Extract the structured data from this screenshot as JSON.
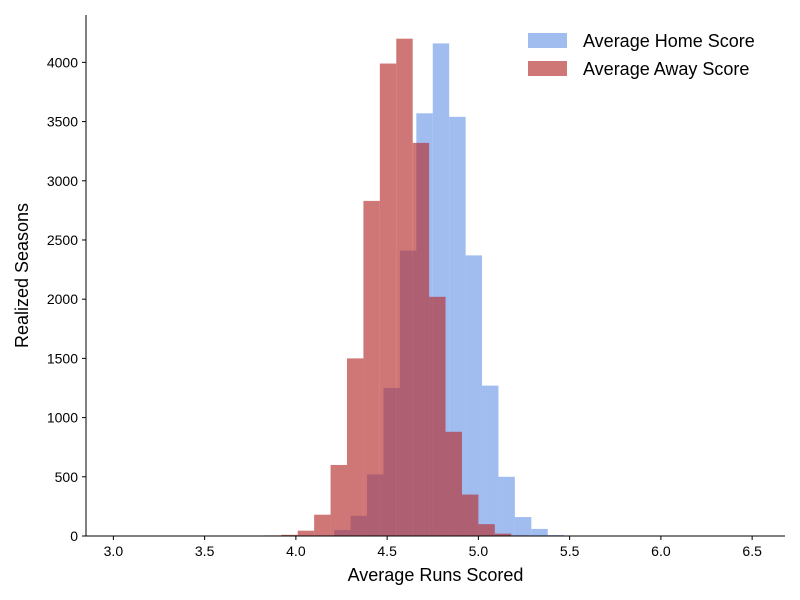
{
  "chart_data": {
    "type": "histogram",
    "xlabel": "Average Runs Scored",
    "ylabel": "Realized Seasons",
    "xlim": [
      2.85,
      6.68
    ],
    "ylim": [
      0,
      4400
    ],
    "xticks": [
      "3.0",
      "3.5",
      "4.0",
      "4.5",
      "5.0",
      "5.5",
      "6.0",
      "6.5"
    ],
    "yticks": [
      "0",
      "500",
      "1000",
      "1500",
      "2000",
      "2500",
      "3000",
      "3500",
      "4000"
    ],
    "grid": false,
    "legend_position": "top-right",
    "series": [
      {
        "name": "Average Home Score",
        "color": "#6e9ae8",
        "opacity": 0.65,
        "bins": [
          {
            "x0": 4.12,
            "x1": 4.21,
            "y": 5
          },
          {
            "x0": 4.21,
            "x1": 4.3,
            "y": 50
          },
          {
            "x0": 4.3,
            "x1": 4.39,
            "y": 170
          },
          {
            "x0": 4.39,
            "x1": 4.48,
            "y": 520
          },
          {
            "x0": 4.48,
            "x1": 4.57,
            "y": 1250
          },
          {
            "x0": 4.57,
            "x1": 4.66,
            "y": 2410
          },
          {
            "x0": 4.66,
            "x1": 4.75,
            "y": 3570
          },
          {
            "x0": 4.75,
            "x1": 4.84,
            "y": 4160
          },
          {
            "x0": 4.84,
            "x1": 4.93,
            "y": 3540
          },
          {
            "x0": 4.93,
            "x1": 5.02,
            "y": 2370
          },
          {
            "x0": 5.02,
            "x1": 5.11,
            "y": 1270
          },
          {
            "x0": 5.11,
            "x1": 5.2,
            "y": 500
          },
          {
            "x0": 5.2,
            "x1": 5.29,
            "y": 160
          },
          {
            "x0": 5.29,
            "x1": 5.38,
            "y": 60
          },
          {
            "x0": 5.38,
            "x1": 5.47,
            "y": 8
          }
        ]
      },
      {
        "name": "Average Away Score",
        "color": "#b52d2d",
        "opacity": 0.65,
        "bins": [
          {
            "x0": 3.83,
            "x1": 3.92,
            "y": 5
          },
          {
            "x0": 3.92,
            "x1": 4.01,
            "y": 10
          },
          {
            "x0": 4.01,
            "x1": 4.1,
            "y": 45
          },
          {
            "x0": 4.1,
            "x1": 4.19,
            "y": 180
          },
          {
            "x0": 4.19,
            "x1": 4.28,
            "y": 600
          },
          {
            "x0": 4.28,
            "x1": 4.37,
            "y": 1500
          },
          {
            "x0": 4.37,
            "x1": 4.46,
            "y": 2830
          },
          {
            "x0": 4.46,
            "x1": 4.55,
            "y": 3990
          },
          {
            "x0": 4.55,
            "x1": 4.64,
            "y": 4200
          },
          {
            "x0": 4.64,
            "x1": 4.73,
            "y": 3320
          },
          {
            "x0": 4.73,
            "x1": 4.82,
            "y": 2020
          },
          {
            "x0": 4.82,
            "x1": 4.91,
            "y": 880
          },
          {
            "x0": 4.91,
            "x1": 5.0,
            "y": 350
          },
          {
            "x0": 5.0,
            "x1": 5.09,
            "y": 100
          },
          {
            "x0": 5.09,
            "x1": 5.18,
            "y": 20
          },
          {
            "x0": 5.18,
            "x1": 5.27,
            "y": 5
          }
        ]
      }
    ]
  }
}
